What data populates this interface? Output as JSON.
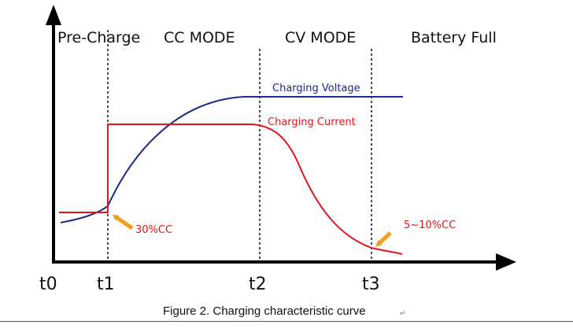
{
  "phases": [
    "Pre-Charge",
    "CC MODE",
    "CV MODE",
    "Battery Full"
  ],
  "time_labels": [
    "t0",
    "t1",
    "t2",
    "t3"
  ],
  "curves": {
    "voltage_label": "Charging Voltage",
    "current_label": "Charging Current"
  },
  "annotations": {
    "precharge_current": "30%CC",
    "termination_current": "5~10%CC"
  },
  "caption": "Figure 2. Charging characteristic curve",
  "colors": {
    "voltage": "#1c2a8c",
    "current": "#e0151b",
    "arrow": "#f0a020",
    "axis": "#000000"
  }
}
